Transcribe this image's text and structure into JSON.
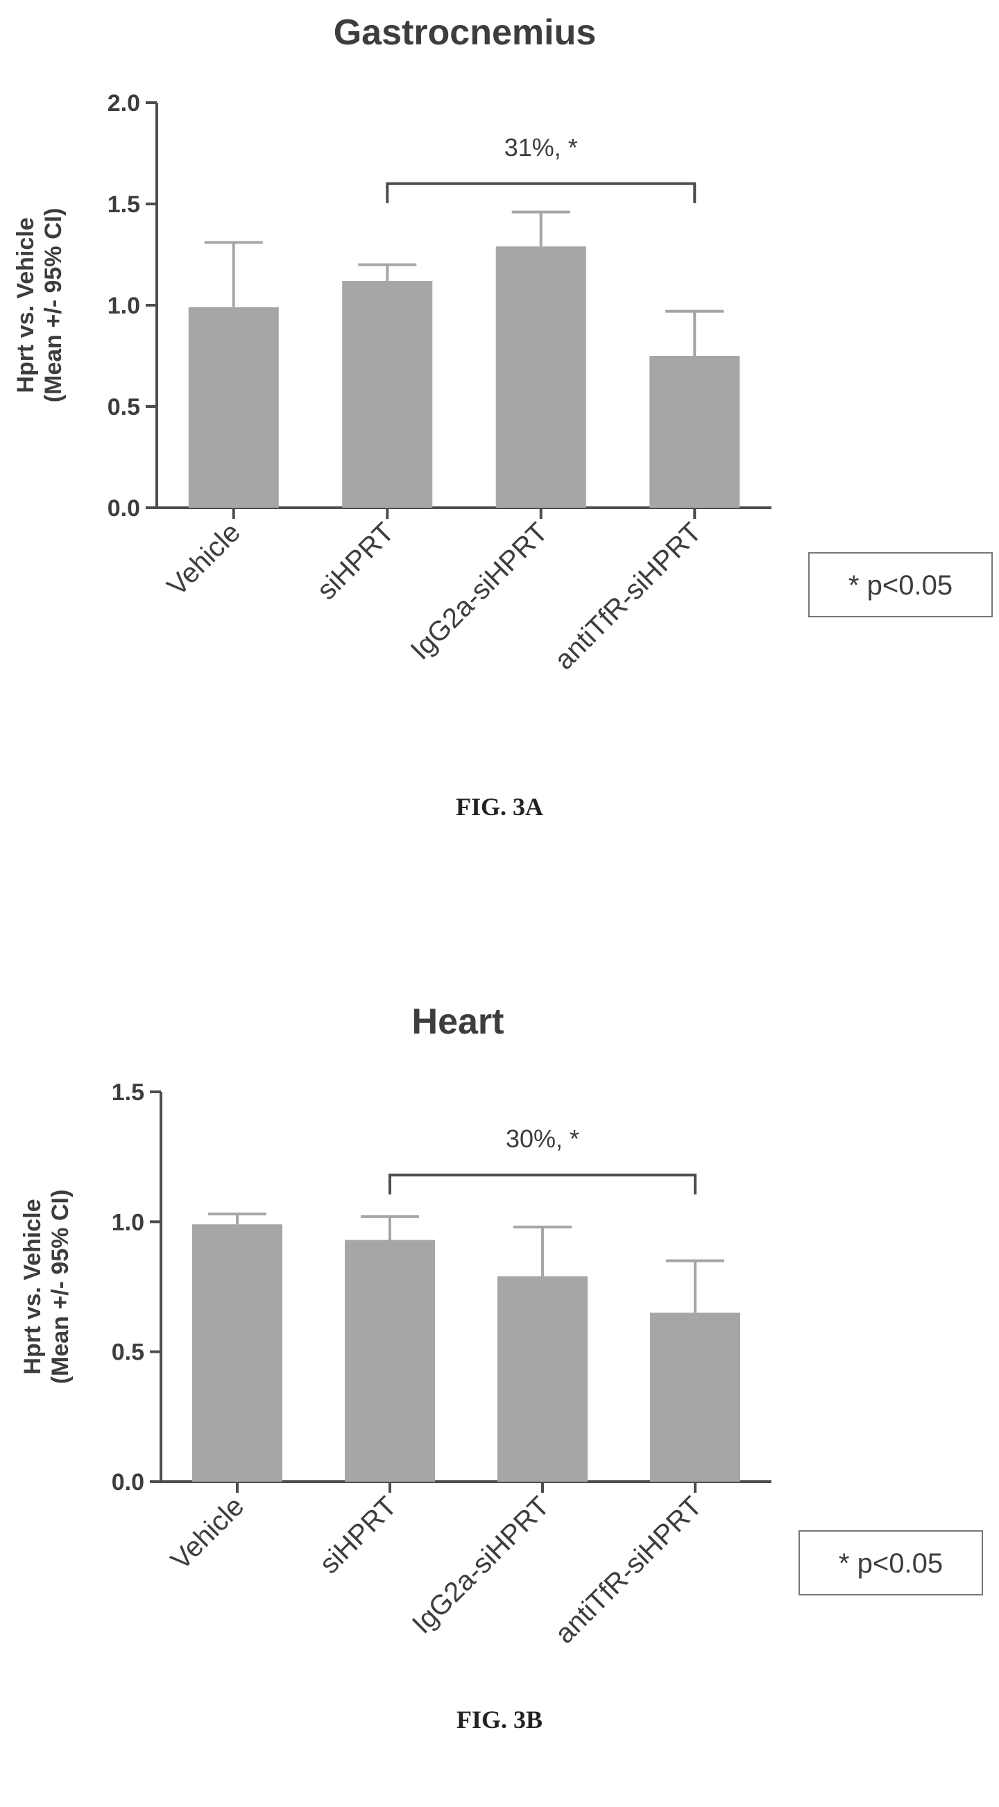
{
  "chart_data": [
    {
      "type": "bar",
      "title": "Gastrocnemius",
      "ylabel_line1": "Hprt vs. Vehicle",
      "ylabel_line2": "(Mean +/- 95% CI)",
      "categories": [
        "Vehicle",
        "siHPRT",
        "IgG2a-siHPRT",
        "antiTfR-siHPRT"
      ],
      "values": [
        0.99,
        1.12,
        1.29,
        0.75
      ],
      "error_upper": [
        1.31,
        1.2,
        1.46,
        0.97
      ],
      "ylim": [
        0.0,
        2.0
      ],
      "yticks": [
        "0.0",
        "0.5",
        "1.0",
        "1.5",
        "2.0"
      ],
      "ytick_values": [
        0.0,
        0.5,
        1.0,
        1.5,
        2.0
      ],
      "comparison": {
        "from": "siHPRT",
        "to": "antiTfR-siHPRT",
        "level": 1.6,
        "label": "31%, *"
      },
      "legend": "* p<0.05",
      "figure_label": "FIG. 3A",
      "bar_color": "#a6a6a6",
      "grid": false
    },
    {
      "type": "bar",
      "title": "Heart",
      "ylabel_line1": "Hprt vs. Vehicle",
      "ylabel_line2": "(Mean +/- 95% CI)",
      "categories": [
        "Vehicle",
        "siHPRT",
        "IgG2a-siHPRT",
        "antiTfR-siHPRT"
      ],
      "values": [
        0.99,
        0.93,
        0.79,
        0.65
      ],
      "error_upper": [
        1.03,
        1.02,
        0.98,
        0.85
      ],
      "ylim": [
        0.0,
        1.5
      ],
      "yticks": [
        "0.0",
        "0.5",
        "1.0",
        "1.5"
      ],
      "ytick_values": [
        0.0,
        0.5,
        1.0,
        1.5
      ],
      "comparison": {
        "from": "siHPRT",
        "to": "antiTfR-siHPRT",
        "level": 1.18,
        "label": "30%, *"
      },
      "legend": "* p<0.05",
      "figure_label": "FIG. 3B",
      "bar_color": "#a6a6a6",
      "grid": false
    }
  ]
}
